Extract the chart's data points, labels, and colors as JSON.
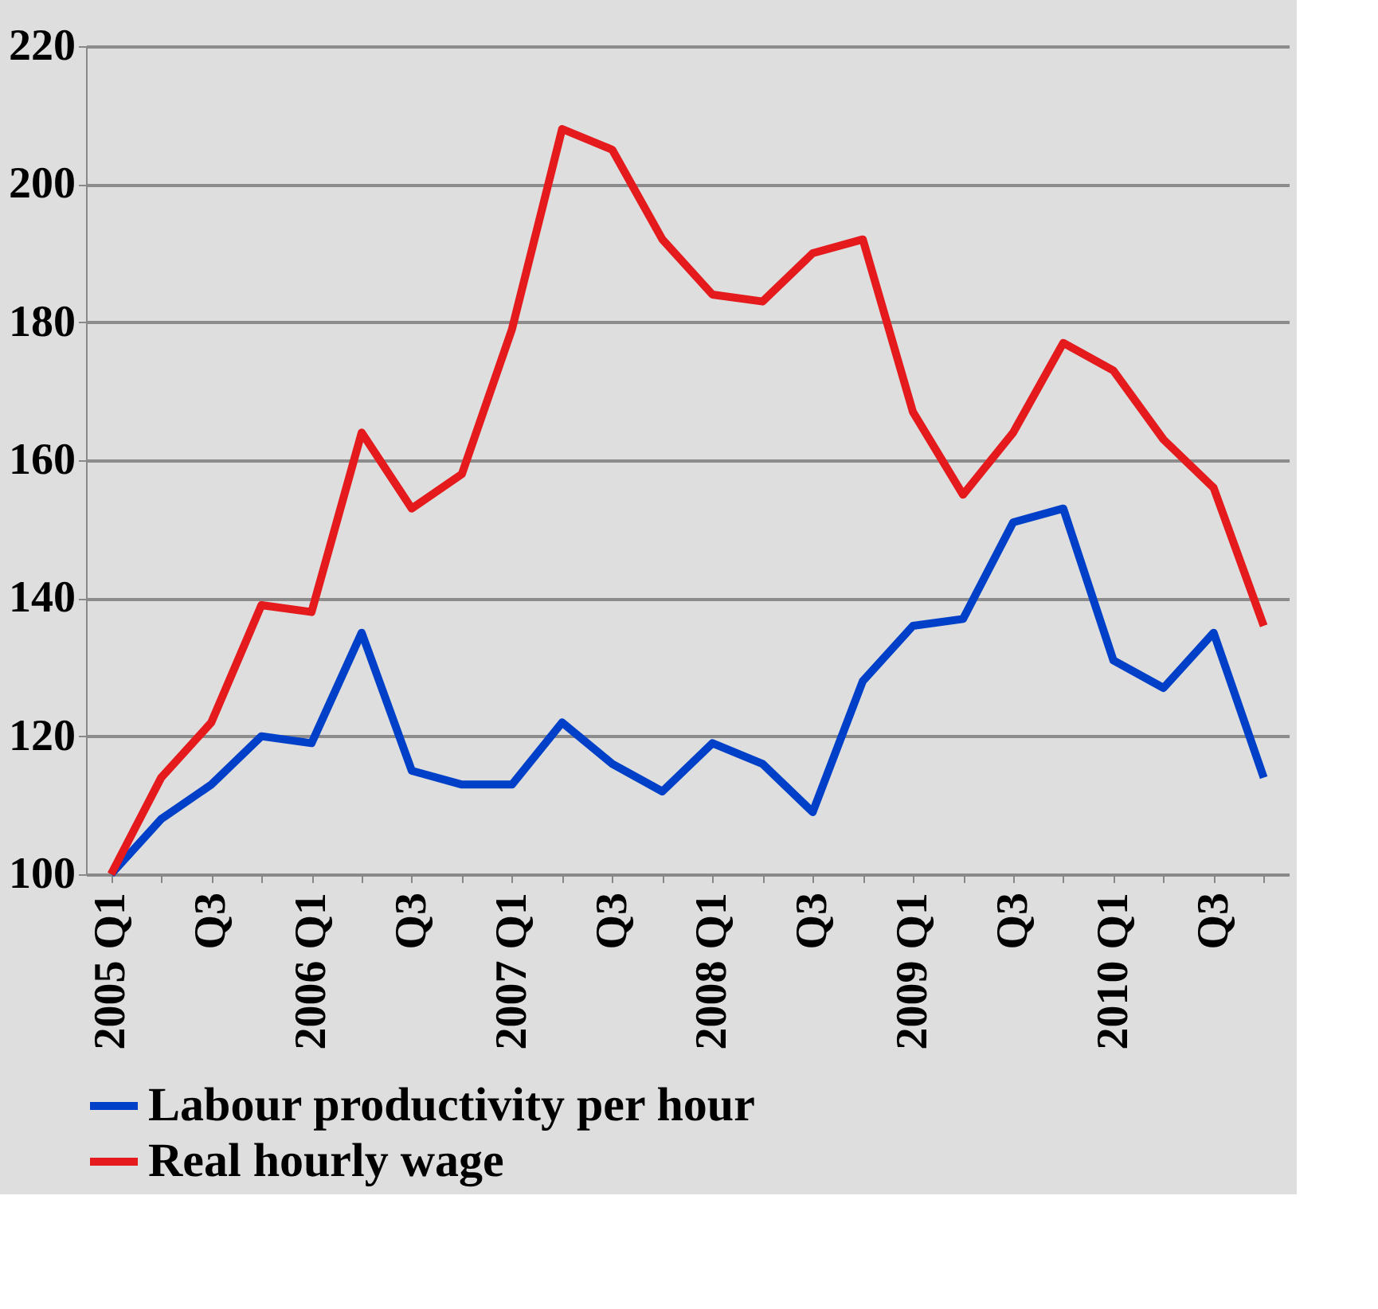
{
  "chart_data": {
    "type": "line",
    "categories": [
      "2005 Q1",
      null,
      "Q3",
      null,
      "2006 Q1",
      null,
      "Q3",
      null,
      "2007 Q1",
      null,
      "Q3",
      null,
      "2008 Q1",
      null,
      "Q3",
      null,
      "2009 Q1",
      null,
      "Q3",
      null,
      "2010 Q1",
      null,
      "Q3",
      null
    ],
    "series": [
      {
        "name": "Labour productivity per hour",
        "color": "#0040c8",
        "values": [
          100,
          108,
          113,
          120,
          119,
          135,
          115,
          113,
          113,
          122,
          116,
          112,
          119,
          116,
          109,
          128,
          136,
          137,
          151,
          153,
          131,
          127,
          135,
          114
        ]
      },
      {
        "name": "Real hourly wage",
        "color": "#e41a1c",
        "values": [
          100,
          114,
          122,
          139,
          138,
          164,
          153,
          158,
          179,
          208,
          205,
          192,
          184,
          183,
          190,
          192,
          167,
          155,
          164,
          177,
          173,
          163,
          156,
          136
        ]
      }
    ],
    "ylim": [
      100,
      220
    ],
    "yticks": [
      100,
      120,
      140,
      160,
      180,
      200,
      220
    ],
    "grid": "y",
    "legend": "bottom",
    "marker": "none",
    "line_style": "solid"
  }
}
